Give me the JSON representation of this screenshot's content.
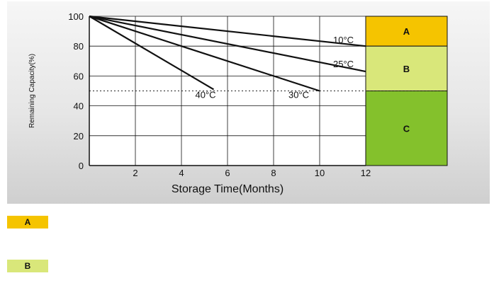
{
  "chart_data": {
    "type": "line",
    "title": "",
    "xlabel": "Storage Time(Months)",
    "ylabel": "Remaining Capacity(%)",
    "xlim": [
      0,
      12
    ],
    "ylim": [
      0,
      100
    ],
    "x_ticks": [
      "2",
      "4",
      "6",
      "8",
      "10",
      "12"
    ],
    "y_ticks": [
      "0",
      "20",
      "40",
      "60",
      "80",
      "100"
    ],
    "grid": true,
    "reference_line": {
      "y": 50,
      "style": "dotted"
    },
    "series": [
      {
        "name": "10°C",
        "x": [
          0,
          12
        ],
        "y": [
          100,
          80
        ]
      },
      {
        "name": "25°C",
        "x": [
          0,
          12
        ],
        "y": [
          100,
          63
        ]
      },
      {
        "name": "30°C",
        "x": [
          0,
          10
        ],
        "y": [
          100,
          50
        ]
      },
      {
        "name": "40°C",
        "x": [
          0,
          5.4
        ],
        "y": [
          100,
          51
        ]
      }
    ],
    "zones": [
      {
        "label": "A",
        "y_from": 80,
        "y_to": 100,
        "color": "#f5c400"
      },
      {
        "label": "B",
        "y_from": 50,
        "y_to": 80,
        "color": "#d9e77a"
      },
      {
        "label": "C",
        "y_from": 0,
        "y_to": 50,
        "color": "#84c12c"
      }
    ]
  },
  "legend": [
    {
      "label": "A",
      "color": "#f5c400"
    },
    {
      "label": "B",
      "color": "#d9e77a"
    }
  ]
}
